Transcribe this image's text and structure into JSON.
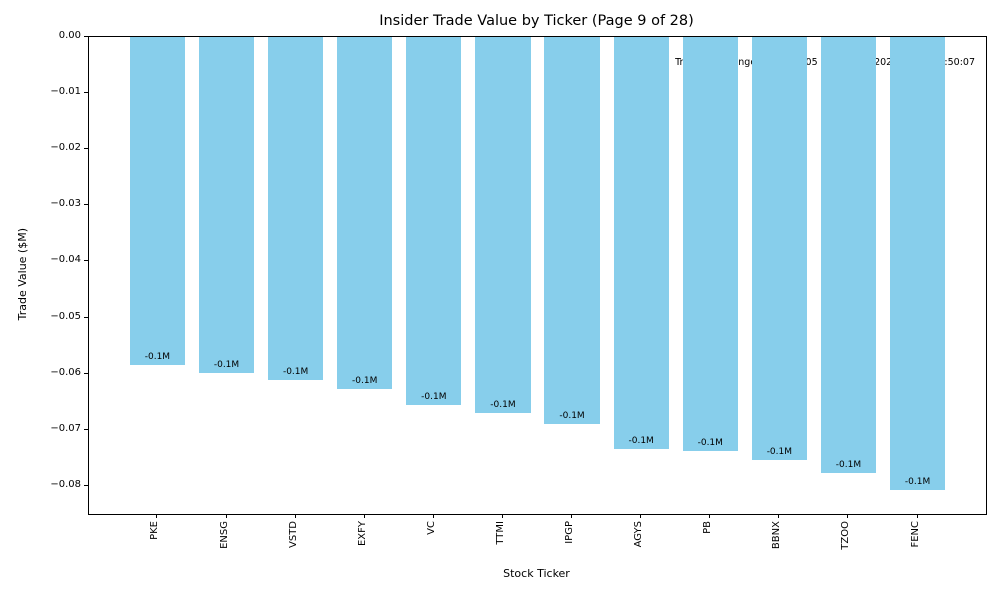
{
  "colors": {
    "bar": "#87CEEB",
    "background": "#ffffff",
    "text": "#000000",
    "annotation_bg": "rgba(255,255,255,0.78)"
  },
  "chart_data": {
    "type": "bar",
    "title": "Insider Trade Value by Ticker (Page 9 of 28)",
    "xlabel": "Stock Ticker",
    "ylabel": "Trade Value ($M)",
    "categories": [
      "PKE",
      "ENSG",
      "VSTD",
      "EXFY",
      "VC",
      "TTMI",
      "IPGP",
      "AGYS",
      "PB",
      "BBNX",
      "TZOO",
      "FENC"
    ],
    "values": [
      -0.0585,
      -0.0598,
      -0.0611,
      -0.0628,
      -0.0656,
      -0.067,
      -0.069,
      -0.0734,
      -0.0738,
      -0.0754,
      -0.0777,
      -0.0808
    ],
    "bar_labels": [
      "-0.1M",
      "-0.1M",
      "-0.1M",
      "-0.1M",
      "-0.1M",
      "-0.1M",
      "-0.1M",
      "-0.1M",
      "-0.1M",
      "-0.1M",
      "-0.1M",
      "-0.1M"
    ],
    "annotation": "Trade date range: 2025-11-05 16:43:29 – 2025-11-07 21:50:07",
    "ylim": [
      -0.085,
      0
    ],
    "grid": false,
    "legend": null,
    "y_ticks": [
      {
        "value": 0.0,
        "label": "0.00"
      },
      {
        "value": -0.01,
        "label": "−0.01"
      },
      {
        "value": -0.02,
        "label": "−0.02"
      },
      {
        "value": -0.03,
        "label": "−0.03"
      },
      {
        "value": -0.04,
        "label": "−0.04"
      },
      {
        "value": -0.05,
        "label": "−0.05"
      },
      {
        "value": -0.06,
        "label": "−0.06"
      },
      {
        "value": -0.07,
        "label": "−0.07"
      },
      {
        "value": -0.08,
        "label": "−0.08"
      }
    ]
  }
}
